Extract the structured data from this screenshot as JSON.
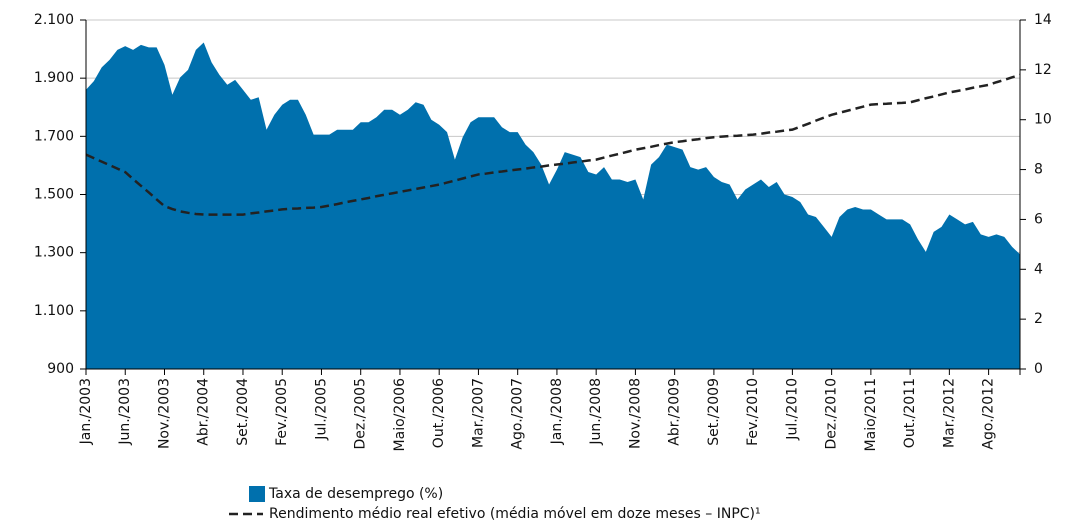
{
  "chart_data": {
    "type": "area-line",
    "categories": [
      "Jan./2003",
      null,
      null,
      null,
      null,
      "Jun./2003",
      null,
      null,
      null,
      null,
      "Nov./2003",
      null,
      null,
      null,
      null,
      "Abr./2004",
      null,
      null,
      null,
      null,
      "Set./2004",
      null,
      null,
      null,
      null,
      "Fev./2005",
      null,
      null,
      null,
      null,
      "Jul./2005",
      null,
      null,
      null,
      null,
      "Dez./2005",
      null,
      null,
      null,
      null,
      "Maio/2006",
      null,
      null,
      null,
      null,
      "Out./2006",
      null,
      null,
      null,
      null,
      "Mar./2007",
      null,
      null,
      null,
      null,
      "Ago./2007",
      null,
      null,
      null,
      null,
      "Jan./2008",
      null,
      null,
      null,
      null,
      "Jun./2008",
      null,
      null,
      null,
      null,
      "Nov./2008",
      null,
      null,
      null,
      null,
      "Abr./2009",
      null,
      null,
      null,
      null,
      "Set./2009",
      null,
      null,
      null,
      null,
      "Fev./2010",
      null,
      null,
      null,
      null,
      "Jul./2010",
      null,
      null,
      null,
      null,
      "Dez./2010",
      null,
      null,
      null,
      null,
      "Maio/2011",
      null,
      null,
      null,
      null,
      "Out./2011",
      null,
      null,
      null,
      null,
      "Mar./2012",
      null,
      null,
      null,
      null,
      "Ago./2012",
      null,
      null,
      null,
      null
    ],
    "series": [
      {
        "name": "Taxa de desemprego (%)",
        "type": "area",
        "axis": "y2",
        "color": "#0070ad",
        "values": [
          11.2,
          11.55,
          12.1,
          12.4,
          12.8,
          12.95,
          12.8,
          13.0,
          12.9,
          12.9,
          12.2,
          11.0,
          11.7,
          12.0,
          12.8,
          13.1,
          12.3,
          11.8,
          11.4,
          11.6,
          11.2,
          10.8,
          10.9,
          9.6,
          10.2,
          10.6,
          10.8,
          10.8,
          10.2,
          9.4,
          9.4,
          9.4,
          9.6,
          9.6,
          9.6,
          9.9,
          9.9,
          10.1,
          10.4,
          10.4,
          10.2,
          10.4,
          10.7,
          10.6,
          10.0,
          9.8,
          9.5,
          8.4,
          9.3,
          9.9,
          10.1,
          10.1,
          10.1,
          9.7,
          9.5,
          9.5,
          9.0,
          8.7,
          8.2,
          7.4,
          8.0,
          8.7,
          8.6,
          8.5,
          7.9,
          7.8,
          8.1,
          7.6,
          7.6,
          7.5,
          7.6,
          6.8,
          8.2,
          8.5,
          9.0,
          8.9,
          8.8,
          8.1,
          8.0,
          8.1,
          7.7,
          7.5,
          7.4,
          6.8,
          7.2,
          7.4,
          7.6,
          7.3,
          7.5,
          7.0,
          6.9,
          6.7,
          6.2,
          6.1,
          5.7,
          5.3,
          6.1,
          6.4,
          6.5,
          6.4,
          6.4,
          6.2,
          6.0,
          6.0,
          6.0,
          5.8,
          5.2,
          4.7,
          5.5,
          5.7,
          6.2,
          6.0,
          5.8,
          5.9,
          5.4,
          5.3,
          5.4,
          5.3,
          4.9,
          4.6
        ]
      },
      {
        "name": "Rendimento médio real efetivo (média móvel em doze meses – INPC)¹",
        "type": "line",
        "axis": "y",
        "color": "#222222",
        "dashed": true,
        "values": [
          1637,
          1625,
          1613,
          1601,
          1589,
          1577,
          1553,
          1530,
          1507,
          1483,
          1460,
          1450,
          1442,
          1437,
          1433,
          1431,
          1431,
          1431,
          1431,
          1431,
          1431,
          1435,
          1438,
          1442,
          1445,
          1449,
          1451,
          1452,
          1454,
          1455,
          1457,
          1462,
          1467,
          1473,
          1478,
          1483,
          1488,
          1494,
          1499,
          1504,
          1509,
          1514,
          1519,
          1524,
          1529,
          1534,
          1541,
          1548,
          1555,
          1562,
          1569,
          1572,
          1576,
          1579,
          1583,
          1586,
          1589,
          1593,
          1596,
          1600,
          1603,
          1606,
          1610,
          1613,
          1617,
          1620,
          1627,
          1634,
          1640,
          1647,
          1654,
          1659,
          1664,
          1670,
          1675,
          1680,
          1683,
          1687,
          1690,
          1694,
          1697,
          1699,
          1701,
          1702,
          1704,
          1706,
          1709,
          1713,
          1716,
          1720,
          1723,
          1733,
          1743,
          1754,
          1764,
          1774,
          1781,
          1788,
          1795,
          1802,
          1809,
          1811,
          1812,
          1814,
          1815,
          1817,
          1824,
          1831,
          1837,
          1844,
          1851,
          1856,
          1861,
          1867,
          1872,
          1877,
          1886,
          1894,
          1903,
          1911
        ]
      }
    ],
    "ylim": [
      900,
      2100
    ],
    "yticks": [
      900,
      {
        "value": 1100,
        "label": "1.100"
      },
      {
        "value": 1300,
        "label": "1.300"
      },
      {
        "value": 1500,
        "label": "1.500"
      },
      {
        "value": 1700,
        "label": "1.700"
      },
      {
        "value": 1900,
        "label": "1.900"
      },
      {
        "value": 2100,
        "label": "2.100"
      }
    ],
    "y2lim": [
      0,
      14
    ],
    "y2ticks": [
      0,
      2,
      4,
      6,
      8,
      10,
      12,
      14
    ],
    "grid": true
  }
}
